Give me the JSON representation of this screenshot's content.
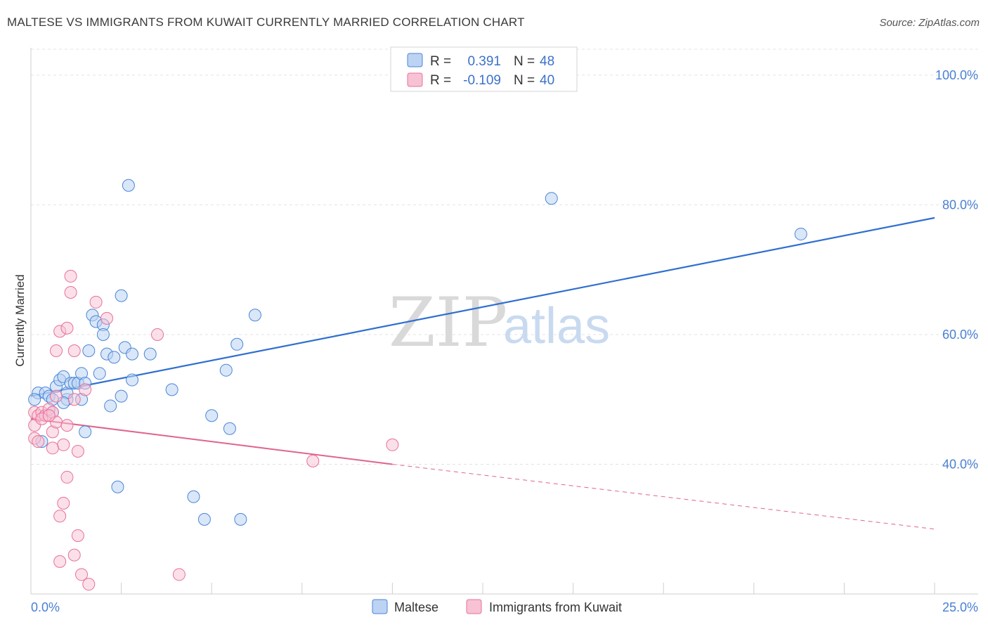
{
  "header": {
    "title": "MALTESE VS IMMIGRANTS FROM KUWAIT CURRENTLY MARRIED CORRELATION CHART",
    "source": "Source: ZipAtlas.com"
  },
  "watermark": {
    "zip": "ZIP",
    "atlas": "atlas"
  },
  "stats": {
    "maltese": {
      "r_label": "R =",
      "r_value": "0.391",
      "n_label": "N =",
      "n_value": "48"
    },
    "kuwait": {
      "r_label": "R =",
      "r_value": "-0.109",
      "n_label": "N =",
      "n_value": "40"
    }
  },
  "legend": {
    "series1": "Maltese",
    "series2": "Immigrants from Kuwait"
  },
  "colors": {
    "blue": "#4a86d8",
    "blue_fill": "#bcd3f3",
    "blue_line": "#2f6fd0",
    "pink": "#e8709a",
    "pink_fill": "#f7c2d4",
    "pink_line": "#e0648f",
    "grid": "#e3e3e3",
    "axis_text": "#4a7fd4"
  },
  "chart_data": {
    "type": "scatter",
    "title": "MALTESE VS IMMIGRANTS FROM KUWAIT CURRENTLY MARRIED CORRELATION CHART",
    "xlabel": "",
    "ylabel": "Currently Married",
    "xlim": [
      0,
      25
    ],
    "ylim": [
      20,
      104
    ],
    "x_tick_labels": [
      "0.0%",
      "25.0%"
    ],
    "y_ticks": [
      40,
      60,
      80,
      100
    ],
    "y_tick_labels": [
      "40.0%",
      "60.0%",
      "80.0%",
      "100.0%"
    ],
    "grid": true,
    "legend_position": "bottom-center",
    "series": [
      {
        "name": "Maltese",
        "color": "#4a86d8",
        "points": [
          [
            0.2,
            51
          ],
          [
            0.4,
            51
          ],
          [
            0.5,
            50.5
          ],
          [
            0.6,
            48
          ],
          [
            0.6,
            50
          ],
          [
            0.7,
            52
          ],
          [
            0.8,
            53
          ],
          [
            0.9,
            53.5
          ],
          [
            1.0,
            50
          ],
          [
            1.0,
            51
          ],
          [
            1.1,
            52.5
          ],
          [
            1.2,
            52.5
          ],
          [
            1.3,
            52.5
          ],
          [
            1.4,
            54
          ],
          [
            1.4,
            50
          ],
          [
            1.5,
            52.5
          ],
          [
            1.5,
            45
          ],
          [
            1.6,
            57.5
          ],
          [
            1.7,
            63
          ],
          [
            1.8,
            62
          ],
          [
            1.9,
            54
          ],
          [
            2.0,
            61.5
          ],
          [
            2.0,
            60
          ],
          [
            2.1,
            57
          ],
          [
            2.2,
            49
          ],
          [
            2.3,
            56.5
          ],
          [
            2.4,
            36.5
          ],
          [
            2.5,
            66
          ],
          [
            2.5,
            50.5
          ],
          [
            2.6,
            58
          ],
          [
            2.7,
            83
          ],
          [
            2.8,
            53
          ],
          [
            2.8,
            57
          ],
          [
            3.3,
            57
          ],
          [
            3.9,
            51.5
          ],
          [
            4.5,
            35
          ],
          [
            4.8,
            31.5
          ],
          [
            5.0,
            47.5
          ],
          [
            5.4,
            54.5
          ],
          [
            5.5,
            45.5
          ],
          [
            5.7,
            58.5
          ],
          [
            5.8,
            31.5
          ],
          [
            6.2,
            63
          ],
          [
            14.4,
            81
          ],
          [
            21.3,
            75.5
          ],
          [
            0.3,
            43.5
          ],
          [
            0.1,
            50
          ],
          [
            0.9,
            49.5
          ]
        ]
      },
      {
        "name": "Immigrants from Kuwait",
        "color": "#e8709a",
        "points": [
          [
            0.1,
            48
          ],
          [
            0.2,
            47.5
          ],
          [
            0.3,
            48
          ],
          [
            0.4,
            47.5
          ],
          [
            0.5,
            48.5
          ],
          [
            0.6,
            48
          ],
          [
            0.6,
            45
          ],
          [
            0.6,
            42.5
          ],
          [
            0.7,
            46.5
          ],
          [
            0.7,
            57.5
          ],
          [
            0.7,
            50.5
          ],
          [
            0.8,
            32
          ],
          [
            0.8,
            25
          ],
          [
            0.8,
            60.5
          ],
          [
            0.9,
            34
          ],
          [
            0.9,
            43
          ],
          [
            1.0,
            61
          ],
          [
            1.0,
            46
          ],
          [
            1.0,
            38
          ],
          [
            1.1,
            66.5
          ],
          [
            1.1,
            69
          ],
          [
            1.2,
            26
          ],
          [
            1.2,
            57.5
          ],
          [
            1.2,
            50
          ],
          [
            1.3,
            42
          ],
          [
            1.3,
            29
          ],
          [
            1.4,
            23
          ],
          [
            1.5,
            51.5
          ],
          [
            1.6,
            21.5
          ],
          [
            1.8,
            65
          ],
          [
            2.1,
            62.5
          ],
          [
            3.5,
            60
          ],
          [
            4.1,
            23
          ],
          [
            7.8,
            40.5
          ],
          [
            10.0,
            43
          ],
          [
            0.1,
            44
          ],
          [
            0.1,
            46
          ],
          [
            0.3,
            47
          ],
          [
            0.5,
            47.5
          ],
          [
            0.2,
            43.5
          ]
        ]
      }
    ],
    "trend_lines": [
      {
        "series": "Maltese",
        "x": [
          0,
          25
        ],
        "y": [
          50.5,
          78
        ]
      },
      {
        "series": "Immigrants from Kuwait",
        "x": [
          0,
          10
        ],
        "y": [
          47,
          40
        ],
        "dashed_extension_x": [
          10,
          25
        ],
        "dashed_extension_y": [
          40,
          30
        ]
      }
    ]
  }
}
